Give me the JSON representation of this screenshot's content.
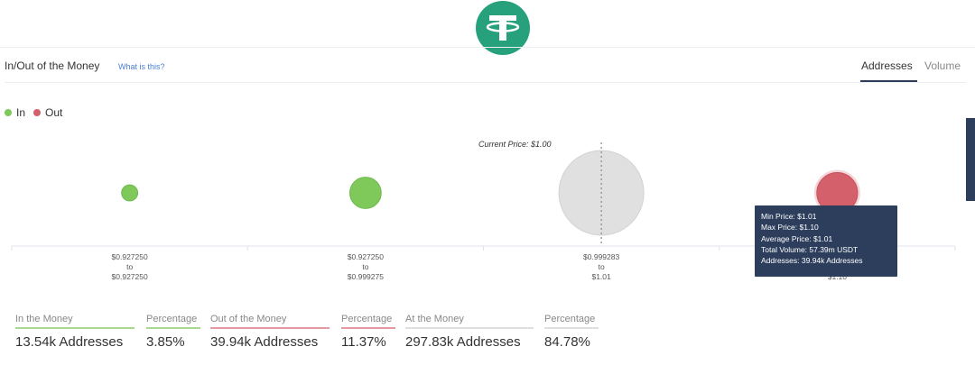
{
  "logo": {
    "name": "tether-logo",
    "letter": "T"
  },
  "header": {
    "title": "In/Out of the Money",
    "help_link": "What is this?",
    "tabs": [
      {
        "label": "Addresses",
        "active": true
      },
      {
        "label": "Volume",
        "active": false
      }
    ]
  },
  "legend": [
    {
      "label": "In",
      "color": "#7ec95a"
    },
    {
      "label": "Out",
      "color": "#d4606b"
    }
  ],
  "current_price_label": "Current Price: $1.00",
  "chart_data": {
    "type": "scatter",
    "title": "",
    "categories": [
      {
        "range": [
          "$0.927250",
          "to",
          "$0.927250"
        ],
        "status": "in",
        "color": "#7ec95a",
        "relative_size": 0.19
      },
      {
        "range": [
          "$0.927250",
          "to",
          "$0.999275"
        ],
        "status": "in",
        "color": "#7ec95a",
        "relative_size": 0.37
      },
      {
        "range": [
          "$0.999283",
          "to",
          "$1.01"
        ],
        "status": "at",
        "color": "#e0e0e0",
        "relative_size": 1.0
      },
      {
        "range": [
          "$1.01",
          "to",
          "$1.10"
        ],
        "status": "out",
        "color": "#d4606b",
        "relative_size": 0.48
      }
    ],
    "current_price": 1.0
  },
  "tooltip": {
    "lines": [
      "Min Price: $1.01",
      "Max Price: $1.10",
      "Average Price: $1.01",
      "Total Volume: 57.39m USDT",
      "Addresses: 39.94k Addresses"
    ]
  },
  "summary": [
    {
      "label": "In the Money",
      "value": "13.54k Addresses",
      "rule_color": "#a9d88f"
    },
    {
      "label": "Percentage",
      "value": "3.85%",
      "rule_color": "#a9d88f"
    },
    {
      "label": "Out of the Money",
      "value": "39.94k Addresses",
      "rule_color": "#e39aa1"
    },
    {
      "label": "Percentage",
      "value": "11.37%",
      "rule_color": "#e39aa1"
    },
    {
      "label": "At the Money",
      "value": "297.83k Addresses",
      "rule_color": "#e0e0e0"
    },
    {
      "label": "Percentage",
      "value": "84.78%",
      "rule_color": "#e0e0e0"
    }
  ]
}
